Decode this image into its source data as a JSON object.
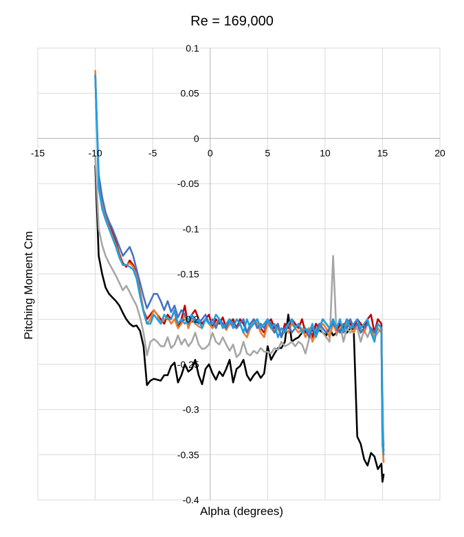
{
  "chart_data": {
    "type": "line",
    "title": "Re = 169,000",
    "xlabel": "Alpha (degrees)",
    "ylabel": "Pitching Moment Cm",
    "xlim": [
      -15,
      20
    ],
    "ylim": [
      -0.4,
      0.1
    ],
    "x_ticks": [
      -15,
      -10,
      -5,
      0,
      5,
      10,
      15,
      20
    ],
    "x_tick_labels": [
      "-15",
      "-10",
      "-5",
      "0",
      "5",
      "10",
      "15",
      "20"
    ],
    "y_ticks": [
      0.1,
      0.05,
      0,
      -0.05,
      -0.1,
      -0.15,
      -0.2,
      -0.25,
      -0.3,
      -0.35,
      -0.4
    ],
    "y_tick_labels": [
      "0.1",
      "0.05",
      "0",
      "-0.05",
      "-0.1",
      "-0.15",
      "-0.2",
      "-0.25",
      "-0.3",
      "-0.35",
      "-0.4"
    ],
    "grid": true,
    "legend": "none",
    "series": [
      {
        "name": "black",
        "color": "#000000",
        "x": [
          -10.0,
          -9.7,
          -9.4,
          -9.1,
          -8.8,
          -8.5,
          -8.2,
          -7.9,
          -7.6,
          -7.3,
          -7.0,
          -6.7,
          -6.4,
          -6.1,
          -5.8,
          -5.5,
          -5.2,
          -4.9,
          -4.6,
          -4.3,
          -4.0,
          -3.7,
          -3.4,
          -3.1,
          -2.8,
          -2.5,
          -2.2,
          -1.9,
          -1.6,
          -1.3,
          -1.0,
          -0.7,
          -0.4,
          -0.1,
          0.2,
          0.5,
          0.8,
          1.1,
          1.4,
          1.7,
          2.0,
          2.3,
          2.6,
          2.9,
          3.2,
          3.5,
          3.8,
          4.1,
          4.4,
          4.7,
          5.0,
          5.3,
          5.6,
          5.9,
          6.2,
          6.5,
          6.8,
          7.1,
          7.4,
          7.7,
          8.0,
          8.3,
          8.6,
          8.9,
          9.2,
          9.5,
          9.8,
          10.1,
          10.4,
          10.7,
          11.0,
          11.3,
          11.6,
          11.9,
          12.2,
          12.5,
          12.8,
          13.1,
          13.4,
          13.7,
          14.0,
          14.3,
          14.6,
          14.9,
          15.0,
          15.1
        ],
        "y": [
          -0.03,
          -0.13,
          -0.15,
          -0.165,
          -0.172,
          -0.176,
          -0.18,
          -0.185,
          -0.193,
          -0.2,
          -0.205,
          -0.208,
          -0.207,
          -0.213,
          -0.23,
          -0.273,
          -0.268,
          -0.266,
          -0.267,
          -0.268,
          -0.262,
          -0.262,
          -0.252,
          -0.248,
          -0.27,
          -0.262,
          -0.25,
          -0.258,
          -0.255,
          -0.245,
          -0.262,
          -0.272,
          -0.255,
          -0.25,
          -0.26,
          -0.267,
          -0.258,
          -0.263,
          -0.255,
          -0.245,
          -0.27,
          -0.255,
          -0.252,
          -0.245,
          -0.262,
          -0.268,
          -0.262,
          -0.258,
          -0.265,
          -0.26,
          -0.23,
          -0.245,
          -0.238,
          -0.232,
          -0.232,
          -0.225,
          -0.195,
          -0.225,
          -0.222,
          -0.22,
          -0.215,
          -0.212,
          -0.215,
          -0.212,
          -0.216,
          -0.212,
          -0.215,
          -0.218,
          -0.21,
          -0.218,
          -0.215,
          -0.212,
          -0.212,
          -0.215,
          -0.21,
          -0.212,
          -0.33,
          -0.338,
          -0.355,
          -0.362,
          -0.348,
          -0.352,
          -0.366,
          -0.36,
          -0.38,
          -0.372
        ]
      },
      {
        "name": "gray",
        "color": "#a6a6a6",
        "x": [
          -10.0,
          -9.7,
          -9.4,
          -9.1,
          -8.8,
          -8.5,
          -8.2,
          -7.9,
          -7.6,
          -7.3,
          -7.0,
          -6.7,
          -6.4,
          -6.1,
          -5.8,
          -5.5,
          -5.2,
          -4.9,
          -4.6,
          -4.3,
          -4.0,
          -3.7,
          -3.4,
          -3.1,
          -2.8,
          -2.5,
          -2.2,
          -1.9,
          -1.6,
          -1.3,
          -1.0,
          -0.7,
          -0.4,
          -0.1,
          0.2,
          0.5,
          0.8,
          1.1,
          1.4,
          1.7,
          2.0,
          2.3,
          2.6,
          2.9,
          3.2,
          3.5,
          3.8,
          4.1,
          4.4,
          4.7,
          5.0,
          5.3,
          5.6,
          5.9,
          6.2,
          6.5,
          6.8,
          7.1,
          7.4,
          7.7,
          8.0,
          8.3,
          8.6,
          8.9,
          9.2,
          9.5,
          9.8,
          10.1,
          10.4,
          10.7,
          11.0,
          11.3,
          11.6,
          11.9,
          12.2,
          12.5,
          12.8,
          13.1,
          13.4,
          13.7,
          14.0,
          14.3,
          14.6,
          14.9,
          15.0,
          15.1
        ],
        "y": [
          -0.02,
          -0.1,
          -0.118,
          -0.13,
          -0.138,
          -0.145,
          -0.152,
          -0.16,
          -0.168,
          -0.163,
          -0.17,
          -0.178,
          -0.185,
          -0.198,
          -0.215,
          -0.24,
          -0.225,
          -0.222,
          -0.225,
          -0.23,
          -0.23,
          -0.22,
          -0.232,
          -0.228,
          -0.218,
          -0.228,
          -0.222,
          -0.23,
          -0.225,
          -0.215,
          -0.228,
          -0.233,
          -0.232,
          -0.228,
          -0.215,
          -0.225,
          -0.228,
          -0.22,
          -0.228,
          -0.235,
          -0.228,
          -0.242,
          -0.238,
          -0.225,
          -0.238,
          -0.24,
          -0.235,
          -0.238,
          -0.232,
          -0.236,
          -0.236,
          -0.238,
          -0.232,
          -0.234,
          -0.225,
          -0.23,
          -0.228,
          -0.225,
          -0.23,
          -0.225,
          -0.228,
          -0.238,
          -0.222,
          -0.216,
          -0.21,
          -0.205,
          -0.215,
          -0.22,
          -0.225,
          -0.13,
          -0.218,
          -0.205,
          -0.225,
          -0.21,
          -0.215,
          -0.212,
          -0.21,
          -0.225,
          -0.212,
          -0.22,
          -0.21,
          -0.22,
          -0.215,
          -0.21,
          -0.28,
          -0.34
        ]
      },
      {
        "name": "red",
        "color": "#c00000",
        "x": [
          -10.0,
          -9.7,
          -9.4,
          -9.1,
          -8.8,
          -8.5,
          -8.2,
          -7.9,
          -7.6,
          -7.3,
          -7.0,
          -6.7,
          -6.4,
          -6.1,
          -5.8,
          -5.5,
          -5.2,
          -4.9,
          -4.6,
          -4.3,
          -4.0,
          -3.7,
          -3.4,
          -3.1,
          -2.8,
          -2.5,
          -2.2,
          -1.9,
          -1.6,
          -1.3,
          -1.0,
          -0.7,
          -0.4,
          -0.1,
          0.2,
          0.5,
          0.8,
          1.1,
          1.4,
          1.7,
          2.0,
          2.3,
          2.6,
          2.9,
          3.2,
          3.5,
          3.8,
          4.1,
          4.4,
          4.7,
          5.0,
          5.3,
          5.6,
          5.9,
          6.2,
          6.5,
          6.8,
          7.1,
          7.4,
          7.7,
          8.0,
          8.3,
          8.6,
          8.9,
          9.2,
          9.5,
          9.8,
          10.1,
          10.4,
          10.7,
          11.0,
          11.3,
          11.6,
          11.9,
          12.2,
          12.5,
          12.8,
          13.1,
          13.4,
          13.7,
          14.0,
          14.3,
          14.6,
          14.9,
          15.0,
          15.1
        ],
        "y": [
          0.07,
          -0.045,
          -0.07,
          -0.085,
          -0.095,
          -0.105,
          -0.115,
          -0.128,
          -0.138,
          -0.142,
          -0.135,
          -0.14,
          -0.15,
          -0.17,
          -0.19,
          -0.2,
          -0.195,
          -0.19,
          -0.195,
          -0.2,
          -0.205,
          -0.195,
          -0.2,
          -0.19,
          -0.21,
          -0.2,
          -0.185,
          -0.21,
          -0.195,
          -0.19,
          -0.2,
          -0.205,
          -0.2,
          -0.195,
          -0.21,
          -0.2,
          -0.205,
          -0.198,
          -0.21,
          -0.205,
          -0.2,
          -0.21,
          -0.2,
          -0.205,
          -0.215,
          -0.208,
          -0.205,
          -0.2,
          -0.21,
          -0.215,
          -0.205,
          -0.2,
          -0.21,
          -0.205,
          -0.22,
          -0.205,
          -0.21,
          -0.2,
          -0.205,
          -0.21,
          -0.2,
          -0.215,
          -0.21,
          -0.22,
          -0.205,
          -0.21,
          -0.2,
          -0.205,
          -0.21,
          -0.2,
          -0.215,
          -0.205,
          -0.21,
          -0.2,
          -0.205,
          -0.21,
          -0.2,
          -0.205,
          -0.21,
          -0.2,
          -0.195,
          -0.215,
          -0.2,
          -0.205,
          -0.34,
          -0.345
        ]
      },
      {
        "name": "orange",
        "color": "#ed7d31",
        "x": [
          -10.0,
          -9.7,
          -9.4,
          -9.1,
          -8.8,
          -8.5,
          -8.2,
          -7.9,
          -7.6,
          -7.3,
          -7.0,
          -6.7,
          -6.4,
          -6.1,
          -5.8,
          -5.5,
          -5.2,
          -4.9,
          -4.6,
          -4.3,
          -4.0,
          -3.7,
          -3.4,
          -3.1,
          -2.8,
          -2.5,
          -2.2,
          -1.9,
          -1.6,
          -1.3,
          -1.0,
          -0.7,
          -0.4,
          -0.1,
          0.2,
          0.5,
          0.8,
          1.1,
          1.4,
          1.7,
          2.0,
          2.3,
          2.6,
          2.9,
          3.2,
          3.5,
          3.8,
          4.1,
          4.4,
          4.7,
          5.0,
          5.3,
          5.6,
          5.9,
          6.2,
          6.5,
          6.8,
          7.1,
          7.4,
          7.7,
          8.0,
          8.3,
          8.6,
          8.9,
          9.2,
          9.5,
          9.8,
          10.1,
          10.4,
          10.7,
          11.0,
          11.3,
          11.6,
          11.9,
          12.2,
          12.5,
          12.8,
          13.1,
          13.4,
          13.7,
          14.0,
          14.3,
          14.6,
          14.9,
          15.0,
          15.1
        ],
        "y": [
          0.075,
          -0.05,
          -0.072,
          -0.088,
          -0.098,
          -0.108,
          -0.118,
          -0.13,
          -0.14,
          -0.14,
          -0.138,
          -0.142,
          -0.152,
          -0.172,
          -0.19,
          -0.205,
          -0.2,
          -0.19,
          -0.195,
          -0.205,
          -0.2,
          -0.198,
          -0.205,
          -0.2,
          -0.21,
          -0.205,
          -0.195,
          -0.21,
          -0.2,
          -0.205,
          -0.208,
          -0.21,
          -0.2,
          -0.205,
          -0.21,
          -0.205,
          -0.2,
          -0.205,
          -0.212,
          -0.205,
          -0.208,
          -0.21,
          -0.205,
          -0.215,
          -0.22,
          -0.21,
          -0.2,
          -0.205,
          -0.215,
          -0.22,
          -0.205,
          -0.21,
          -0.215,
          -0.21,
          -0.22,
          -0.21,
          -0.215,
          -0.205,
          -0.21,
          -0.215,
          -0.21,
          -0.22,
          -0.21,
          -0.225,
          -0.215,
          -0.21,
          -0.205,
          -0.21,
          -0.22,
          -0.205,
          -0.215,
          -0.21,
          -0.215,
          -0.205,
          -0.21,
          -0.215,
          -0.205,
          -0.21,
          -0.215,
          -0.205,
          -0.21,
          -0.22,
          -0.21,
          -0.215,
          -0.34,
          -0.358
        ]
      },
      {
        "name": "dark blue",
        "color": "#4472c4",
        "x": [
          -10.0,
          -9.7,
          -9.4,
          -9.1,
          -8.8,
          -8.5,
          -8.2,
          -7.9,
          -7.6,
          -7.3,
          -7.0,
          -6.7,
          -6.4,
          -6.1,
          -5.8,
          -5.5,
          -5.2,
          -4.9,
          -4.6,
          -4.3,
          -4.0,
          -3.7,
          -3.4,
          -3.1,
          -2.8,
          -2.5,
          -2.2,
          -1.9,
          -1.6,
          -1.3,
          -1.0,
          -0.7,
          -0.4,
          -0.1,
          0.2,
          0.5,
          0.8,
          1.1,
          1.4,
          1.7,
          2.0,
          2.3,
          2.6,
          2.9,
          3.2,
          3.5,
          3.8,
          4.1,
          4.4,
          4.7,
          5.0,
          5.3,
          5.6,
          5.9,
          6.2,
          6.5,
          6.8,
          7.1,
          7.4,
          7.7,
          8.0,
          8.3,
          8.6,
          8.9,
          9.2,
          9.5,
          9.8,
          10.1,
          10.4,
          10.7,
          11.0,
          11.3,
          11.6,
          11.9,
          12.2,
          12.5,
          12.8,
          13.1,
          13.4,
          13.7,
          14.0,
          14.3,
          14.6,
          14.9,
          15.0,
          15.1
        ],
        "y": [
          0.068,
          -0.04,
          -0.065,
          -0.082,
          -0.092,
          -0.1,
          -0.11,
          -0.12,
          -0.13,
          -0.125,
          -0.12,
          -0.13,
          -0.145,
          -0.16,
          -0.175,
          -0.188,
          -0.18,
          -0.172,
          -0.172,
          -0.18,
          -0.19,
          -0.18,
          -0.192,
          -0.185,
          -0.198,
          -0.19,
          -0.195,
          -0.205,
          -0.195,
          -0.2,
          -0.205,
          -0.2,
          -0.195,
          -0.205,
          -0.2,
          -0.21,
          -0.2,
          -0.205,
          -0.21,
          -0.2,
          -0.205,
          -0.21,
          -0.205,
          -0.2,
          -0.215,
          -0.205,
          -0.2,
          -0.21,
          -0.205,
          -0.21,
          -0.2,
          -0.205,
          -0.215,
          -0.205,
          -0.22,
          -0.21,
          -0.205,
          -0.215,
          -0.21,
          -0.205,
          -0.215,
          -0.21,
          -0.22,
          -0.21,
          -0.215,
          -0.205,
          -0.21,
          -0.215,
          -0.21,
          -0.205,
          -0.21,
          -0.215,
          -0.205,
          -0.21,
          -0.2,
          -0.21,
          -0.205,
          -0.215,
          -0.21,
          -0.205,
          -0.21,
          -0.215,
          -0.205,
          -0.21,
          -0.33,
          -0.345
        ]
      },
      {
        "name": "light blue",
        "color": "#1ba1e2",
        "x": [
          -10.0,
          -9.7,
          -9.4,
          -9.1,
          -8.8,
          -8.5,
          -8.2,
          -7.9,
          -7.6,
          -7.3,
          -7.0,
          -6.7,
          -6.4,
          -6.1,
          -5.8,
          -5.5,
          -5.2,
          -4.9,
          -4.6,
          -4.3,
          -4.0,
          -3.7,
          -3.4,
          -3.1,
          -2.8,
          -2.5,
          -2.2,
          -1.9,
          -1.6,
          -1.3,
          -1.0,
          -0.7,
          -0.4,
          -0.1,
          0.2,
          0.5,
          0.8,
          1.1,
          1.4,
          1.7,
          2.0,
          2.3,
          2.6,
          2.9,
          3.2,
          3.5,
          3.8,
          4.1,
          4.4,
          4.7,
          5.0,
          5.3,
          5.6,
          5.9,
          6.2,
          6.5,
          6.8,
          7.1,
          7.4,
          7.7,
          8.0,
          8.3,
          8.6,
          8.9,
          9.2,
          9.5,
          9.8,
          10.1,
          10.4,
          10.7,
          11.0,
          11.3,
          11.6,
          11.9,
          12.2,
          12.5,
          12.8,
          13.1,
          13.4,
          13.7,
          14.0,
          14.3,
          14.6,
          14.9,
          15.0,
          15.1
        ],
        "y": [
          0.07,
          -0.055,
          -0.078,
          -0.09,
          -0.1,
          -0.11,
          -0.12,
          -0.132,
          -0.14,
          -0.14,
          -0.142,
          -0.145,
          -0.155,
          -0.175,
          -0.192,
          -0.205,
          -0.205,
          -0.195,
          -0.2,
          -0.205,
          -0.195,
          -0.2,
          -0.2,
          -0.19,
          -0.205,
          -0.2,
          -0.205,
          -0.2,
          -0.195,
          -0.205,
          -0.2,
          -0.21,
          -0.2,
          -0.205,
          -0.205,
          -0.195,
          -0.2,
          -0.21,
          -0.205,
          -0.2,
          -0.21,
          -0.2,
          -0.205,
          -0.215,
          -0.2,
          -0.21,
          -0.205,
          -0.2,
          -0.21,
          -0.205,
          -0.2,
          -0.21,
          -0.205,
          -0.22,
          -0.21,
          -0.215,
          -0.205,
          -0.2,
          -0.21,
          -0.205,
          -0.215,
          -0.21,
          -0.215,
          -0.205,
          -0.22,
          -0.21,
          -0.2,
          -0.205,
          -0.21,
          -0.2,
          -0.21,
          -0.2,
          -0.215,
          -0.2,
          -0.21,
          -0.205,
          -0.2,
          -0.21,
          -0.205,
          -0.2,
          -0.215,
          -0.225,
          -0.205,
          -0.21,
          -0.335,
          -0.35
        ]
      }
    ]
  }
}
